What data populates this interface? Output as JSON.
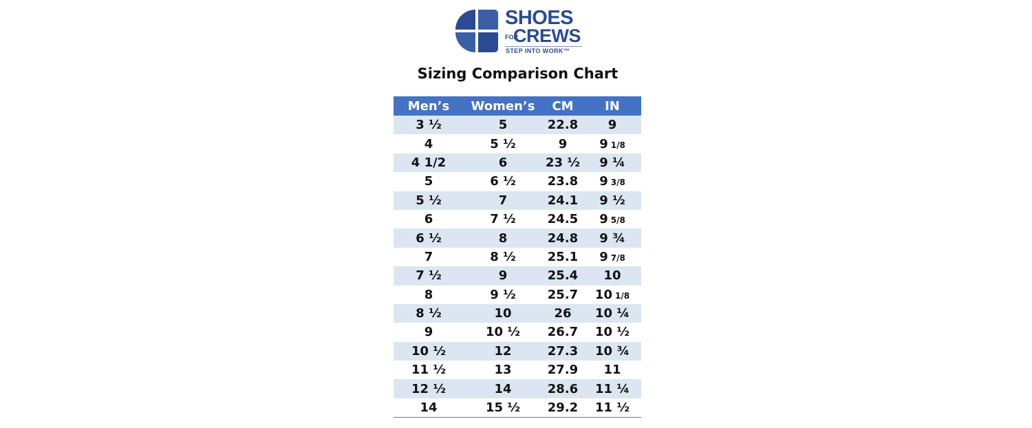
{
  "brand": {
    "line1": "SHOES",
    "line2_small": "FOR",
    "line2_big": "CREWS",
    "tagline": "STEP INTO WORK™",
    "colors": {
      "primary": "#2a4b93",
      "secondary": "#5f7bb8"
    }
  },
  "chart_title": "Sizing Comparison Chart",
  "table": {
    "header_color": "#4472c4",
    "stripe_color": "#dce6f2",
    "columns": [
      "Men’s",
      "Women’s",
      "CM",
      "IN"
    ],
    "rows": [
      {
        "mens": "3 ½",
        "womens": "5",
        "cm": "22.8",
        "in_whole": "9",
        "in_frac": ""
      },
      {
        "mens": "4",
        "womens": "5 ½",
        "cm": "9",
        "in_whole": "9",
        "in_frac": "1/8"
      },
      {
        "mens": "4 1/2",
        "womens": "6",
        "cm": "23 ½",
        "in_whole": "9 ¼",
        "in_frac": ""
      },
      {
        "mens": "5",
        "womens": "6 ½",
        "cm": "23.8",
        "in_whole": "9",
        "in_frac": "3/8"
      },
      {
        "mens": "5 ½",
        "womens": "7",
        "cm": "24.1",
        "in_whole": "9 ½",
        "in_frac": ""
      },
      {
        "mens": "6",
        "womens": "7 ½",
        "cm": "24.5",
        "in_whole": "9",
        "in_frac": "5/8"
      },
      {
        "mens": "6 ½",
        "womens": "8",
        "cm": "24.8",
        "in_whole": "9 ¾",
        "in_frac": ""
      },
      {
        "mens": "7",
        "womens": "8 ½",
        "cm": "25.1",
        "in_whole": "9",
        "in_frac": "7/8"
      },
      {
        "mens": "7 ½",
        "womens": "9",
        "cm": "25.4",
        "in_whole": "10",
        "in_frac": ""
      },
      {
        "mens": "8",
        "womens": "9 ½",
        "cm": "25.7",
        "in_whole": "10",
        "in_frac": "1/8"
      },
      {
        "mens": "8 ½",
        "womens": "10",
        "cm": "26",
        "in_whole": "10 ¼",
        "in_frac": ""
      },
      {
        "mens": "9",
        "womens": "10 ½",
        "cm": "26.7",
        "in_whole": "10 ½",
        "in_frac": ""
      },
      {
        "mens": "10 ½",
        "womens": "12",
        "cm": "27.3",
        "in_whole": "10 ¾",
        "in_frac": ""
      },
      {
        "mens": "11 ½",
        "womens": "13",
        "cm": "27.9",
        "in_whole": "11",
        "in_frac": ""
      },
      {
        "mens": "12 ½",
        "womens": "14",
        "cm": "28.6",
        "in_whole": "11 ¼",
        "in_frac": ""
      },
      {
        "mens": "14",
        "womens": "15 ½",
        "cm": "29.2",
        "in_whole": "11 ½",
        "in_frac": ""
      }
    ]
  }
}
